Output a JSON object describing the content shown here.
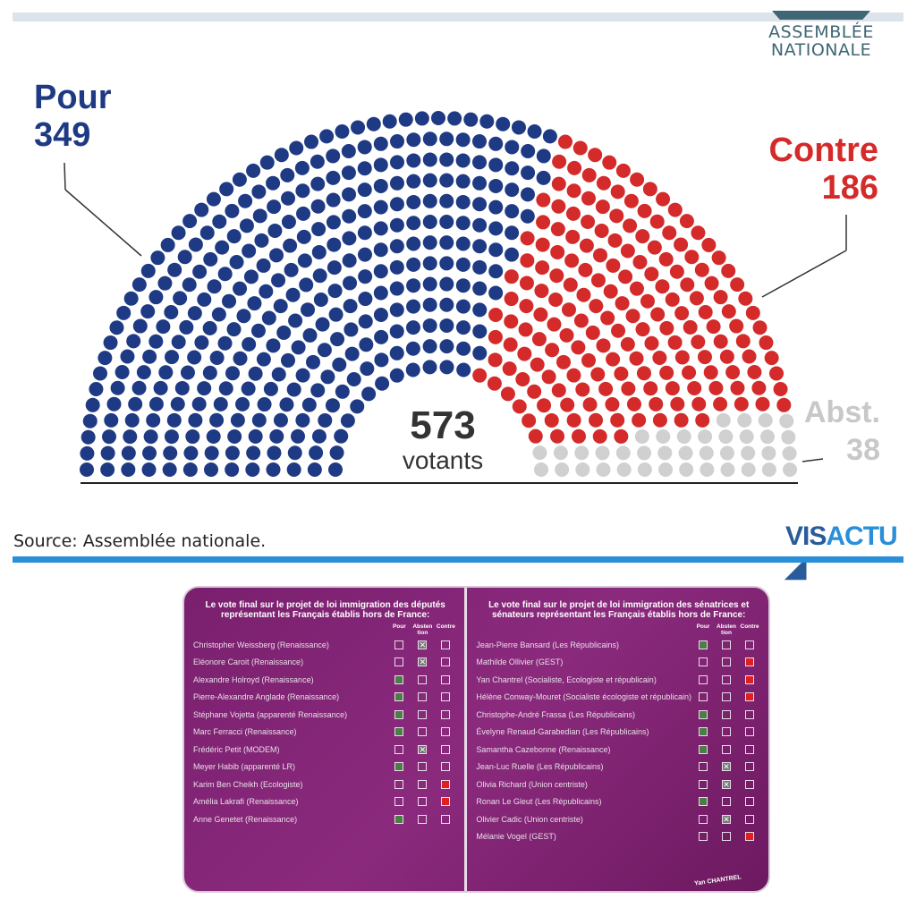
{
  "logo": {
    "line1": "ASSEMBLÉE",
    "line2": "NATIONALE"
  },
  "chart_data": {
    "type": "parliament",
    "categories": [
      "Pour",
      "Contre",
      "Abst."
    ],
    "values": [
      349,
      186,
      38
    ],
    "colors": [
      "#1f3a84",
      "#d42a2a",
      "#d0d0d0"
    ],
    "total": {
      "value": "573",
      "label": "votants"
    }
  },
  "labels": {
    "pour": "Pour",
    "pour_n": "349",
    "contre": "Contre",
    "contre_n": "186",
    "abst": "Abst.",
    "abst_n": "38"
  },
  "source": "Source: Assemblée nationale.",
  "brand": {
    "a": "VIS",
    "b": "ACTU"
  },
  "deputes": {
    "title": "Le vote final sur le projet de loi immigration des députés représentant les Français établis hors de France:",
    "headers": [
      "Pour",
      "Absten tion",
      "Contre"
    ],
    "rows": [
      {
        "name": "Christopher Weissberg (Renaissance)",
        "vote": "abst"
      },
      {
        "name": "Eléonore Caroit (Renaissance)",
        "vote": "abst"
      },
      {
        "name": "Alexandre Holroyd (Renaissance)",
        "vote": "pour"
      },
      {
        "name": "Pierre-Alexandre Anglade (Renaissance)",
        "vote": "pour"
      },
      {
        "name": "Stéphane Vojetta (apparenté Renaissance)",
        "vote": "pour"
      },
      {
        "name": "Marc Ferracci (Renaissance)",
        "vote": "pour"
      },
      {
        "name": "Frédéric Petit (MODEM)",
        "vote": "abst"
      },
      {
        "name": "Meyer Habib (apparenté LR)",
        "vote": "pour"
      },
      {
        "name": "Karim Ben Cheikh (Ecologiste)",
        "vote": "contre"
      },
      {
        "name": "Amélia Lakrafi (Renaissance)",
        "vote": "contre"
      },
      {
        "name": "Anne Genetet (Renaissance)",
        "vote": "pour"
      }
    ]
  },
  "senateurs": {
    "title": "Le vote final sur le projet de loi immigration des sénatrices et sénateurs représentant les Français établis hors de France:",
    "headers": [
      "Pour",
      "Absten tion",
      "Contre"
    ],
    "rows": [
      {
        "name": "Jean-Pierre Bansard (Les Républicains)",
        "vote": "pour"
      },
      {
        "name": "Mathilde Ollivier (GEST)",
        "vote": "contre"
      },
      {
        "name": "Yan Chantrel (Socialiste, Ecologiste et républicain)",
        "vote": "contre"
      },
      {
        "name": "Hélène Conway-Mouret (Socialiste écologiste et républicain)",
        "vote": "contre"
      },
      {
        "name": "Christophe-André Frassa (Les Républicains)",
        "vote": "pour"
      },
      {
        "name": "Évelyne Renaud-Garabedian (Les Républicains)",
        "vote": "pour"
      },
      {
        "name": "Samantha Cazebonne (Renaissance)",
        "vote": "pour"
      },
      {
        "name": "Jean-Luc Ruelle (Les Républicains)",
        "vote": "abst"
      },
      {
        "name": "Olivia Richard (Union centriste)",
        "vote": "abst"
      },
      {
        "name": "Ronan Le Gleut (Les Républicains)",
        "vote": "pour"
      },
      {
        "name": "Olivier Cadic (Union centriste)",
        "vote": "abst"
      },
      {
        "name": "Mélanie Vogel (GEST)",
        "vote": "contre"
      }
    ],
    "signature": "Yan CHANTREL"
  }
}
